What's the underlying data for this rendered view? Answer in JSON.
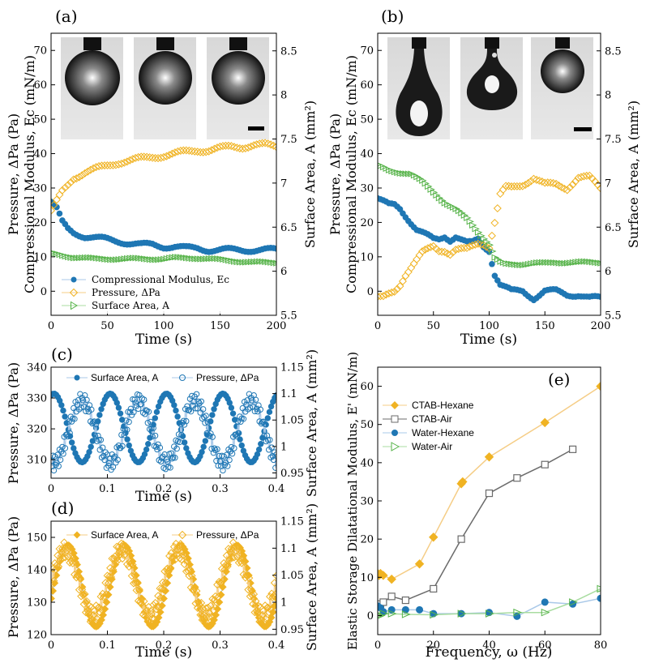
{
  "chart_data": [
    {
      "type": "scatter",
      "panel": "(a)",
      "xlabel": "Time (s)",
      "ylabel_left": [
        "Pressure, ΔPa (Pa)",
        "Compressional Modulus, Ec (mN/m)"
      ],
      "ylabel_right": "Surface Area, A (mm²)",
      "xlim": [
        0,
        200
      ],
      "ylim_left": [
        -7,
        75
      ],
      "ylim_right": [
        5.5,
        8.7
      ],
      "xticks": [
        "0",
        "50",
        "100",
        "150",
        "200"
      ],
      "yticks_left": [
        "0",
        "10",
        "20",
        "30",
        "40",
        "50",
        "60",
        "70"
      ],
      "yticks_right": [
        "5.5",
        "6",
        "6.5",
        "7",
        "7.5",
        "8",
        "8.5"
      ],
      "legend_position": "bottom-left",
      "series": [
        {
          "name": "Compressional Modulus, Ec",
          "axis": "left",
          "marker": "filled-circle",
          "color": "#1f77b4",
          "x": [
            0,
            5,
            10,
            15,
            20,
            30,
            40,
            50,
            60,
            70,
            80,
            90,
            100,
            110,
            120,
            130,
            140,
            150,
            160,
            170,
            180,
            190,
            200
          ],
          "values": [
            26,
            24,
            20,
            18,
            17,
            16,
            15.5,
            15,
            14.5,
            14,
            13.5,
            13.5,
            13,
            13,
            12.5,
            12.5,
            12,
            12,
            12,
            12,
            12,
            12,
            12
          ]
        },
        {
          "name": "Pressure, ΔPa",
          "axis": "left",
          "marker": "open-diamond",
          "color": "#f0b323",
          "x": [
            0,
            5,
            10,
            15,
            20,
            30,
            40,
            50,
            60,
            70,
            80,
            90,
            100,
            110,
            120,
            130,
            140,
            150,
            160,
            170,
            180,
            190,
            200
          ],
          "values": [
            23,
            26,
            29,
            31,
            33,
            34.5,
            35.5,
            36.5,
            37.5,
            38,
            38.5,
            39,
            39.5,
            40,
            40.5,
            41,
            41,
            41.5,
            42,
            42,
            42.5,
            42.5,
            42
          ]
        },
        {
          "name": "Surface Area, A",
          "axis": "right",
          "marker": "open-triangle-right",
          "color": "#56b349",
          "x": [
            0,
            10,
            20,
            30,
            40,
            50,
            60,
            70,
            80,
            90,
            100,
            110,
            120,
            130,
            140,
            150,
            160,
            170,
            180,
            190,
            200
          ],
          "values": [
            6.2,
            6.18,
            6.16,
            6.15,
            6.14,
            6.14,
            6.14,
            6.14,
            6.14,
            6.14,
            6.14,
            6.15,
            6.15,
            6.15,
            6.14,
            6.13,
            6.12,
            6.11,
            6.1,
            6.1,
            6.1
          ]
        }
      ],
      "inset": "three pendant drop images with scale bar"
    },
    {
      "type": "scatter",
      "panel": "(b)",
      "xlabel": "Time (s)",
      "ylabel_left": [
        "Pressure, ΔPa (Pa)",
        "Compressional Modulus, Ec (mN/m)"
      ],
      "ylabel_right": "Surface Area, A (mm²)",
      "xlim": [
        0,
        200
      ],
      "ylim_left": [
        -7,
        75
      ],
      "ylim_right": [
        5.5,
        8.7
      ],
      "xticks": [
        "0",
        "50",
        "100",
        "150",
        "200"
      ],
      "yticks_left": [
        "0",
        "10",
        "20",
        "30",
        "40",
        "50",
        "60",
        "70"
      ],
      "yticks_right": [
        "5.5",
        "6",
        "6.5",
        "7",
        "7.5",
        "8",
        "8.5"
      ],
      "series": [
        {
          "name": "Compressional Modulus, Ec",
          "axis": "left",
          "marker": "filled-circle",
          "color": "#1f77b4",
          "x": [
            0,
            5,
            10,
            15,
            20,
            25,
            30,
            35,
            40,
            45,
            50,
            55,
            60,
            65,
            70,
            75,
            80,
            85,
            90,
            95,
            100,
            105,
            110,
            115,
            120,
            130,
            140,
            150,
            160,
            170,
            180,
            190,
            200
          ],
          "values": [
            27,
            26,
            25,
            25,
            24,
            22,
            20,
            18,
            17,
            16,
            15,
            15,
            16,
            15,
            16,
            15,
            14,
            14,
            15,
            13,
            12,
            5,
            2,
            1,
            0,
            0,
            -2,
            0,
            0,
            -1,
            -1,
            -2,
            -2
          ]
        },
        {
          "name": "Pressure, ΔPa",
          "axis": "left",
          "marker": "open-diamond",
          "color": "#f0b323",
          "x": [
            0,
            5,
            10,
            15,
            20,
            25,
            30,
            35,
            40,
            45,
            50,
            55,
            60,
            65,
            70,
            75,
            80,
            85,
            90,
            95,
            100,
            105,
            110,
            115,
            120,
            130,
            140,
            150,
            160,
            170,
            180,
            190,
            200
          ],
          "values": [
            -2,
            -2,
            -1,
            0,
            2,
            5,
            7,
            9,
            11,
            12,
            13,
            12,
            12,
            11,
            12,
            12,
            12,
            13,
            14,
            14,
            13,
            20,
            28,
            30,
            30,
            31,
            33,
            31,
            31,
            30,
            33,
            33,
            30
          ]
        },
        {
          "name": "Surface Area, A",
          "axis": "right",
          "marker": "open-triangle-right",
          "color": "#56b349",
          "x": [
            0,
            10,
            20,
            30,
            40,
            50,
            60,
            70,
            80,
            90,
            100,
            105,
            110,
            115,
            120,
            130,
            140,
            150,
            160,
            170,
            180,
            190,
            200
          ],
          "values": [
            7.2,
            7.15,
            7.12,
            7.1,
            7.02,
            6.9,
            6.78,
            6.7,
            6.6,
            6.45,
            6.3,
            6.15,
            6.1,
            6.08,
            6.08,
            6.08,
            6.09,
            6.09,
            6.1,
            6.1,
            6.1,
            6.1,
            6.1
          ]
        }
      ],
      "inset": "three pendant drop images with scale bar"
    },
    {
      "type": "scatter",
      "panel": "(c)",
      "xlabel": "Time (s)",
      "ylabel_left": "Pressure, ΔPa (Pa)",
      "ylabel_right": "Surface Area, A (mm²)",
      "xlim": [
        0,
        0.4
      ],
      "ylim_left": [
        304,
        340
      ],
      "ylim_right": [
        0.94,
        1.15
      ],
      "xticks": [
        "0",
        "0.1",
        "0.2",
        "0.3",
        "0.4"
      ],
      "yticks_left": [
        "310",
        "320",
        "330",
        "340"
      ],
      "yticks_right": [
        "0.95",
        "1",
        "1.05",
        "1.1",
        "1.15"
      ],
      "legend_position": "top",
      "series": [
        {
          "name": "Surface Area, A",
          "axis": "right",
          "marker": "filled-circle",
          "color": "#1f77b4",
          "period": 0.1,
          "amplitude": 0.065,
          "mean": 1.035,
          "phase": 0.005
        },
        {
          "name": "Pressure, ΔPa",
          "axis": "left",
          "marker": "open-circle",
          "color": "#1f77b4",
          "period": 0.1,
          "amplitude": 10,
          "mean": 319,
          "phase": 0.055
        }
      ]
    },
    {
      "type": "scatter",
      "panel": "(d)",
      "xlabel": "Time (s)",
      "ylabel_left": "Pressure, ΔPa (Pa)",
      "ylabel_right": "Surface Area, A (mm²)",
      "xlim": [
        0,
        0.4
      ],
      "ylim_left": [
        120,
        155
      ],
      "ylim_right": [
        0.94,
        1.15
      ],
      "xticks": [
        "0",
        "0.1",
        "0.2",
        "0.3",
        "0.4"
      ],
      "yticks_left": [
        "120",
        "130",
        "140",
        "150"
      ],
      "yticks_right": [
        "0.95",
        "1",
        "1.05",
        "1.1",
        "1.15"
      ],
      "legend_position": "top",
      "series": [
        {
          "name": "Surface Area, A",
          "axis": "right",
          "marker": "filled-diamond",
          "color": "#f0b323",
          "period": 0.1,
          "amplitude": 0.075,
          "mean": 1.03,
          "phase": 0.03
        },
        {
          "name": "Pressure, ΔPa",
          "axis": "left",
          "marker": "open-diamond",
          "color": "#f0b323",
          "period": 0.1,
          "amplitude": 10,
          "mean": 136,
          "phase": 0.025
        }
      ]
    },
    {
      "type": "line",
      "panel": "(e)",
      "xlabel": "Frequency, ω (Hz)",
      "ylabel": "Elastic Storage Dilatational Modulus, E' (mN/m)",
      "xlim": [
        0,
        80
      ],
      "ylim": [
        -5,
        65
      ],
      "xticks": [
        "0",
        "20",
        "40",
        "60",
        "80"
      ],
      "yticks": [
        "0",
        "10",
        "20",
        "30",
        "40",
        "50",
        "60"
      ],
      "legend_position": "top-left",
      "series": [
        {
          "name": "CTAB-Hexane",
          "marker": "filled-diamond",
          "color": "#f0b323",
          "line": "#f5cd86",
          "x": [
            0,
            0.5,
            1,
            2,
            5,
            15,
            20,
            30,
            30.5,
            40,
            60,
            80
          ],
          "values": [
            11,
            10.5,
            11,
            10.5,
            9.5,
            13.5,
            20.5,
            34.5,
            35,
            41.5,
            50.5,
            60
          ]
        },
        {
          "name": "CTAB-Air",
          "marker": "open-square",
          "color": "#6b6b6b",
          "line": "#6b6b6b",
          "x": [
            0,
            1,
            2,
            5,
            10,
            20,
            30,
            40,
            50,
            60,
            70
          ],
          "values": [
            2.5,
            3,
            3.5,
            5,
            4,
            7,
            20,
            32,
            36,
            39.5,
            43.5
          ]
        },
        {
          "name": "Water-Hexane",
          "marker": "filled-circle",
          "color": "#1f77b4",
          "line": "#a9c8e8",
          "x": [
            0,
            1,
            2,
            5,
            10,
            15,
            20,
            30,
            40,
            50,
            60,
            70,
            80
          ],
          "values": [
            2.5,
            2,
            1,
            1.5,
            1.5,
            1.5,
            0.5,
            0.5,
            0.8,
            -0.2,
            3.5,
            3,
            4.5
          ]
        },
        {
          "name": "Water-Air",
          "marker": "open-triangle-right",
          "color": "#56b349",
          "line": "#a8dca0",
          "x": [
            0,
            1,
            2,
            5,
            10,
            20,
            30,
            40,
            50,
            60,
            70,
            80
          ],
          "values": [
            0,
            0,
            0.5,
            0.5,
            0.3,
            0.2,
            0.5,
            0.5,
            0.8,
            0.8,
            3.5,
            7
          ]
        }
      ]
    }
  ]
}
